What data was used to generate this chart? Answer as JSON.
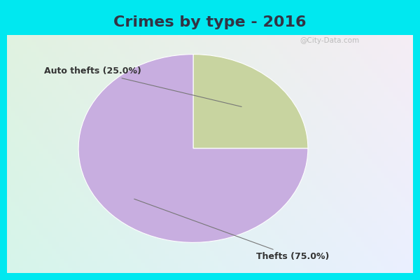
{
  "title": "Crimes by type - 2016",
  "slices": [
    {
      "label": "Auto thefts",
      "pct": 25.0,
      "color": "#c8d4a0"
    },
    {
      "label": "Thefts",
      "pct": 75.0,
      "color": "#c8aee0"
    }
  ],
  "bg_color_cyan": "#00e8f0",
  "bg_color_main_tl": "#d8f0e0",
  "bg_color_main_br": "#c0e8f8",
  "title_fontsize": 16,
  "label_fontsize": 9,
  "watermark": "@City-Data.com",
  "startangle": 90,
  "title_color": "#333344"
}
